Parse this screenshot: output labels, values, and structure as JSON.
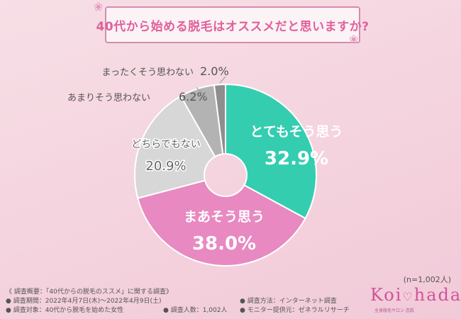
{
  "title": "40代から始める脱毛はオススメだと思いますか?",
  "chart_data": {
    "type": "pie",
    "categories": [
      "とてもそう思う",
      "まあそう思う",
      "どちらでもない",
      "あまりそう思わない",
      "まったくそう思わない"
    ],
    "values": [
      32.9,
      38.0,
      20.9,
      6.2,
      2.0
    ],
    "value_labels": [
      "32.9%",
      "38.0%",
      "20.9%",
      "6.2%",
      "2.0%"
    ],
    "colors": [
      "#34cdb0",
      "#e889c1",
      "#d7d7d7",
      "#b3b3b3",
      "#8e8e8e"
    ],
    "donut": true,
    "start": "top, clockwise"
  },
  "sample_note": "(n=1,002人)",
  "footer": {
    "overview": "《 調査概要：「40代からの脱毛のススメ」に関する調査》",
    "period": "● 調査期間：2022年4月7日(木)～2022年4月9日(土)",
    "method": "● 調査方法：インターネット調査",
    "target": "● 調査対象：40代から脱毛を始めた女性",
    "count": "● 調査人数：1,002人",
    "provider": "● モニター提供元：ゼネラルリサーチ"
  },
  "logo": {
    "text_left": "Koi",
    "text_right": "hada",
    "subtitle": "全身脱毛サロン 恋肌"
  },
  "colors": {
    "title": "#e0609a",
    "title_border": "#d88aae",
    "background": "#f4d3de"
  }
}
